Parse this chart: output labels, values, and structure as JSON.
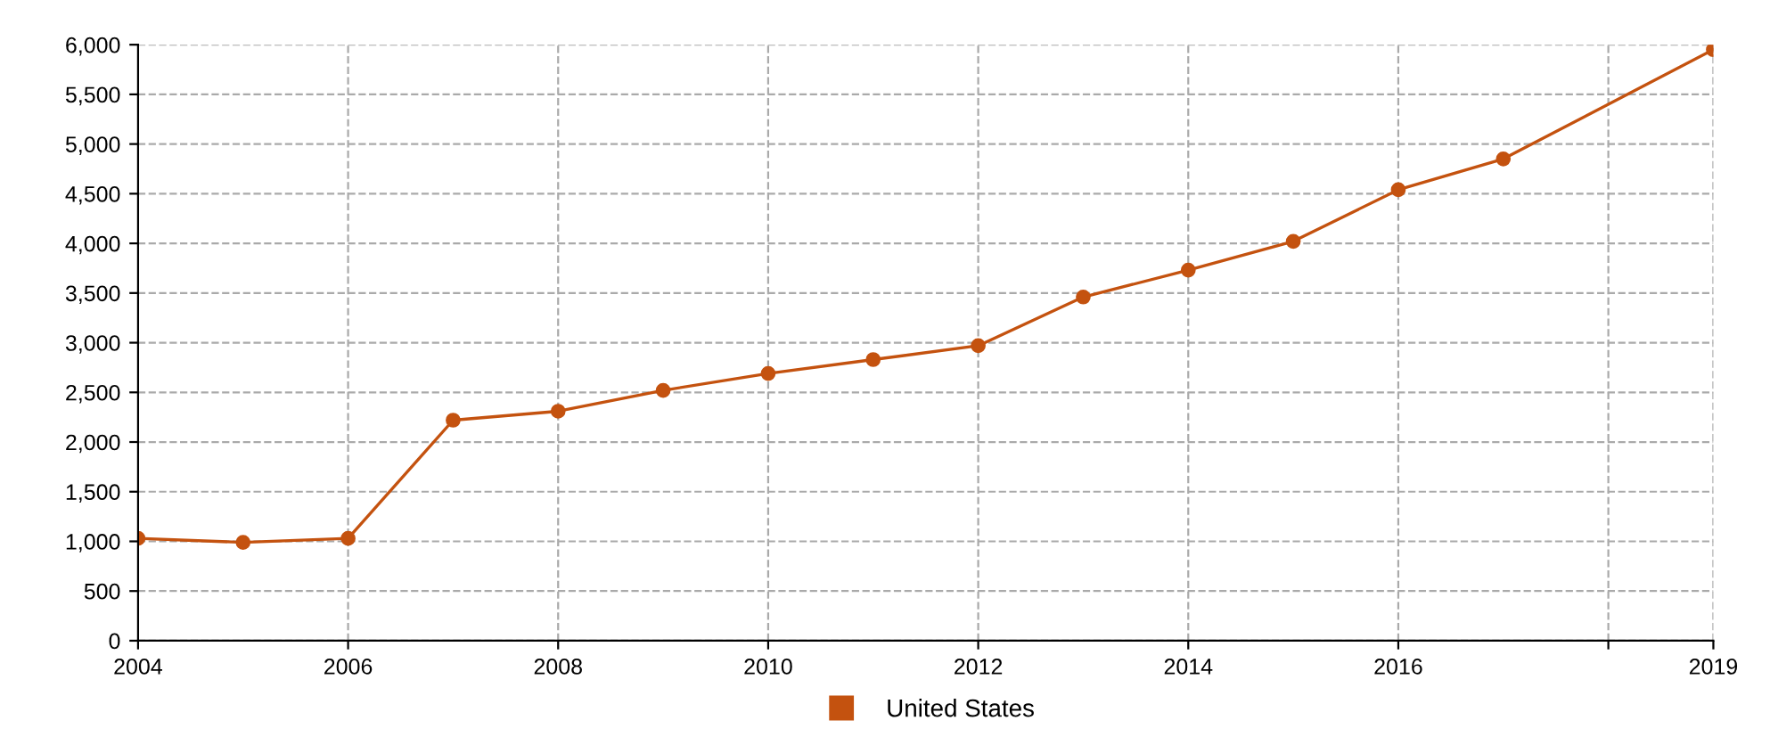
{
  "chart_data": {
    "type": "line",
    "x": [
      2004,
      2005,
      2006,
      2007,
      2008,
      2009,
      2010,
      2011,
      2012,
      2013,
      2014,
      2015,
      2016,
      2017,
      2019
    ],
    "series": [
      {
        "name": "United States",
        "color": "#c4520f",
        "values": [
          1030,
          990,
          1030,
          2220,
          2310,
          2520,
          2690,
          2830,
          2970,
          3460,
          3730,
          4020,
          4540,
          4850,
          5950
        ]
      }
    ],
    "xlim": [
      2004,
      2019
    ],
    "xticks": [
      2004,
      2006,
      2008,
      2010,
      2012,
      2014,
      2016,
      {
        "value": 2018,
        "label": null
      },
      2019
    ],
    "ylim": [
      0,
      6000
    ],
    "yticks": [
      {
        "value": 0,
        "label": "0"
      },
      {
        "value": 500,
        "label": "500"
      },
      {
        "value": 1000,
        "label": "1,000"
      },
      {
        "value": 1500,
        "label": "1,500"
      },
      {
        "value": 2000,
        "label": "2,000"
      },
      {
        "value": 2500,
        "label": "2,500"
      },
      {
        "value": 3000,
        "label": "3,000"
      },
      {
        "value": 3500,
        "label": "3,500"
      },
      {
        "value": 4000,
        "label": "4,000"
      },
      {
        "value": 4500,
        "label": "4,500"
      },
      {
        "value": 5000,
        "label": "5,000"
      },
      {
        "value": 5500,
        "label": "5,500"
      },
      {
        "value": 6000,
        "label": "6,000"
      }
    ],
    "grid": true,
    "legend": "bottom",
    "marker": "circle",
    "line_style": "solid"
  }
}
